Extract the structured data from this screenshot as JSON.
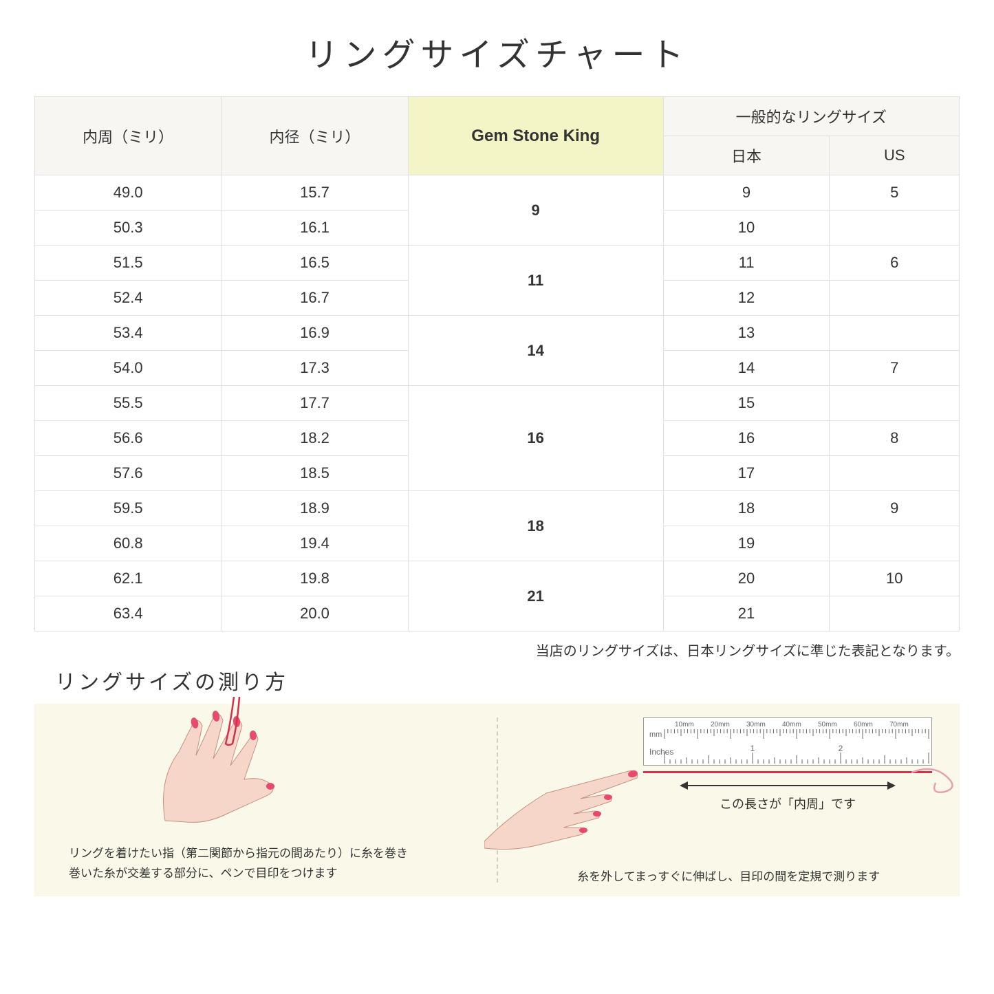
{
  "title": "リングサイズチャート",
  "table": {
    "headers": {
      "circumference": "内周（ミリ）",
      "diameter": "内径（ミリ）",
      "gsk": "Gem Stone King",
      "common": "一般的なリングサイズ",
      "japan": "日本",
      "us": "US"
    },
    "header_bg": "#f7f6f2",
    "gsk_bg": "#f4f5c7",
    "border_color": "#e0e0e0",
    "groups": [
      {
        "gsk": "9",
        "rows": [
          {
            "circ": "49.0",
            "dia": "15.7",
            "jp": "9",
            "us": "5"
          },
          {
            "circ": "50.3",
            "dia": "16.1",
            "jp": "10",
            "us": ""
          }
        ]
      },
      {
        "gsk": "11",
        "rows": [
          {
            "circ": "51.5",
            "dia": "16.5",
            "jp": "11",
            "us": "6"
          },
          {
            "circ": "52.4",
            "dia": "16.7",
            "jp": "12",
            "us": ""
          }
        ]
      },
      {
        "gsk": "14",
        "rows": [
          {
            "circ": "53.4",
            "dia": "16.9",
            "jp": "13",
            "us": ""
          },
          {
            "circ": "54.0",
            "dia": "17.3",
            "jp": "14",
            "us": "7"
          }
        ]
      },
      {
        "gsk": "16",
        "rows": [
          {
            "circ": "55.5",
            "dia": "17.7",
            "jp": "15",
            "us": ""
          },
          {
            "circ": "56.6",
            "dia": "18.2",
            "jp": "16",
            "us": "8"
          },
          {
            "circ": "57.6",
            "dia": "18.5",
            "jp": "17",
            "us": ""
          }
        ]
      },
      {
        "gsk": "18",
        "rows": [
          {
            "circ": "59.5",
            "dia": "18.9",
            "jp": "18",
            "us": "9"
          },
          {
            "circ": "60.8",
            "dia": "19.4",
            "jp": "19",
            "us": ""
          }
        ]
      },
      {
        "gsk": "21",
        "rows": [
          {
            "circ": "62.1",
            "dia": "19.8",
            "jp": "20",
            "us": "10"
          },
          {
            "circ": "63.4",
            "dia": "20.0",
            "jp": "21",
            "us": ""
          }
        ]
      }
    ]
  },
  "note": "当店のリングサイズは、日本リングサイズに準じた表記となります。",
  "measure": {
    "title": "リングサイズの測り方",
    "bg_color": "#faf8e8",
    "left_text_1": "リングを着けたい指（第二関節から指元の間あたり）に糸を巻き",
    "left_text_2": "巻いた糸が交差する部分に、ペンで目印をつけます",
    "right_text": "糸を外してまっすぐに伸ばし、目印の間を定規で測ります",
    "arrow_label": "この長さが「内周」です",
    "ruler_mm_marks": [
      "10mm",
      "20mm",
      "30mm",
      "40mm",
      "50mm",
      "60mm",
      "70mm"
    ],
    "ruler_mm_label": "mm",
    "ruler_inches_label": "Inches",
    "ruler_inch_marks": [
      "1",
      "2"
    ],
    "hand_skin": "#f5d6c8",
    "nail_color": "#e84a6f",
    "thread_color": "#d62f4a"
  }
}
